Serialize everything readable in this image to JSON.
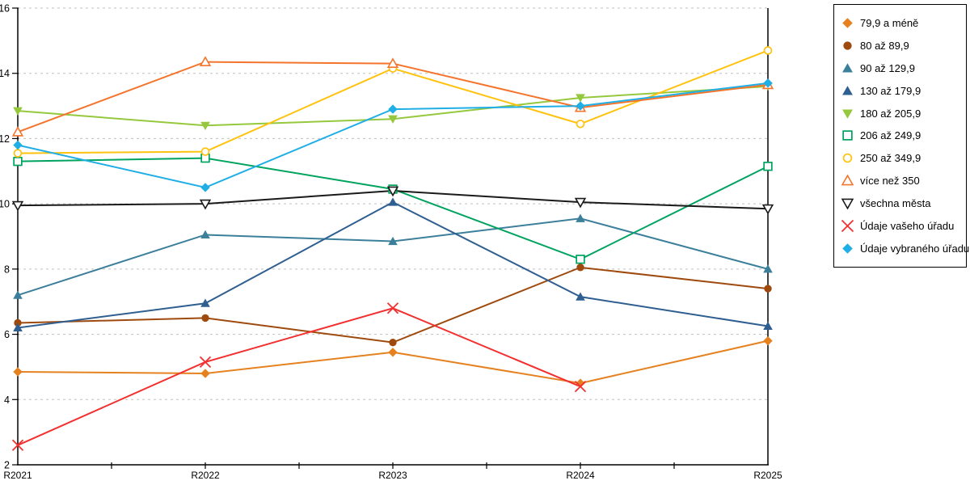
{
  "chart_data": {
    "type": "line",
    "title": "",
    "xlabel": "",
    "ylabel": "",
    "categories": [
      "R2021",
      "R2022",
      "R2023",
      "R2024",
      "R2025"
    ],
    "ylim": [
      2,
      16
    ],
    "ytick_step": 2,
    "grid": "horizontal-dashed",
    "grid_color": "#c0c0c0",
    "legend_position": "top-right-outside",
    "legend_border_color": "#000000",
    "series": [
      {
        "name": "79,9 a méně",
        "marker": "diamond-filled",
        "color": "#E5821F",
        "values": [
          4.85,
          4.8,
          5.45,
          4.5,
          5.8
        ]
      },
      {
        "name": "80 až 89,9",
        "marker": "circle-filled",
        "color": "#9E4A0E",
        "values": [
          6.35,
          6.5,
          5.75,
          8.05,
          7.4
        ]
      },
      {
        "name": "90 až 129,9",
        "marker": "triangle-up-filled",
        "color": "#3C7F9B",
        "values": [
          7.2,
          9.05,
          8.85,
          9.55,
          8.0
        ]
      },
      {
        "name": "130 až 179,9",
        "marker": "triangle-up-filled",
        "color": "#2F5F90",
        "values": [
          6.2,
          6.95,
          10.05,
          7.15,
          6.25
        ]
      },
      {
        "name": "180 až 205,9",
        "marker": "triangle-down-filled",
        "color": "#95C83D",
        "values": [
          12.85,
          12.4,
          12.6,
          13.25,
          13.6
        ]
      },
      {
        "name": "206 až 249,9",
        "marker": "square-open",
        "color": "#00A35F",
        "values": [
          11.3,
          11.4,
          10.45,
          8.3,
          11.15
        ]
      },
      {
        "name": "250 až 349,9",
        "marker": "circle-open",
        "color": "#FFC20E",
        "values": [
          11.55,
          11.6,
          14.15,
          12.45,
          14.7
        ]
      },
      {
        "name": "více než 350",
        "marker": "triangle-up-open",
        "color": "#F4742C",
        "values": [
          12.2,
          14.35,
          14.3,
          12.95,
          13.65
        ]
      },
      {
        "name": "všechna města",
        "marker": "triangle-down-open",
        "color": "#1A1A1A",
        "values": [
          9.95,
          10.0,
          10.4,
          10.05,
          9.85
        ]
      },
      {
        "name": "Údaje vašeho úřadu",
        "marker": "x",
        "color": "#F23030",
        "values": [
          2.6,
          5.15,
          6.8,
          4.4,
          null
        ]
      },
      {
        "name": "Údaje vybraného úřadu",
        "marker": "diamond-filled",
        "color": "#1FAEE5",
        "values": [
          11.8,
          10.5,
          12.9,
          13.0,
          13.7
        ]
      }
    ]
  }
}
